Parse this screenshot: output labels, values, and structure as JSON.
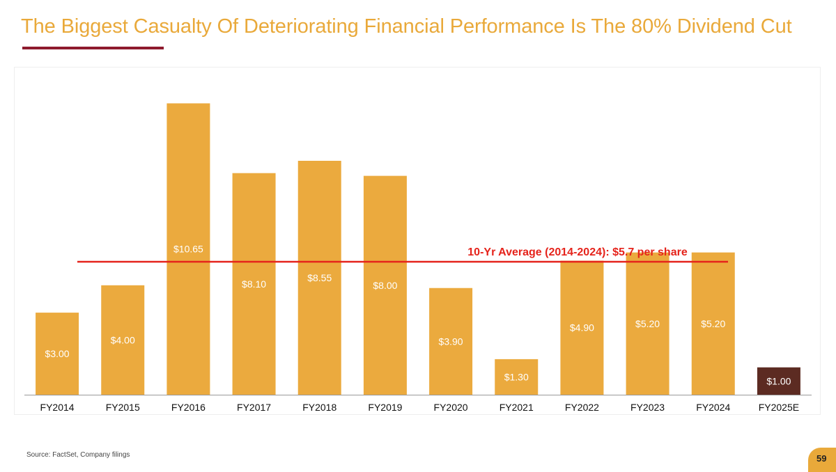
{
  "slide": {
    "title": "The Biggest Casualty Of Deteriorating Financial Performance Is The 80% Dividend Cut",
    "source": "Source: FactSet, Company filings",
    "page_number": "59"
  },
  "colors": {
    "title": "#E9A93A",
    "accent_rule": "#8E1B2E",
    "bar": "#EBAA3E",
    "bar_estimate": "#5C2B22",
    "average_line": "#E5231B",
    "axis": "#999999",
    "label_inside": "#ffffff",
    "tick_label": "#111111"
  },
  "chart_data": {
    "type": "bar",
    "title": "",
    "xlabel": "",
    "ylabel": "",
    "categories": [
      "FY2014",
      "FY2015",
      "FY2016",
      "FY2017",
      "FY2018",
      "FY2019",
      "FY2020",
      "FY2021",
      "FY2022",
      "FY2023",
      "FY2024",
      "FY2025E"
    ],
    "values": [
      3.0,
      4.0,
      10.65,
      8.1,
      8.55,
      8.0,
      3.9,
      1.3,
      4.9,
      5.2,
      5.2,
      1.0
    ],
    "labels": [
      "$3.00",
      "$4.00",
      "$10.65",
      "$8.10",
      "$8.55",
      "$8.00",
      "$3.90",
      "$1.30",
      "$4.90",
      "$5.20",
      "$5.20",
      "$1.00"
    ],
    "estimate_index": 11,
    "ylim": [
      0,
      11.0
    ],
    "grid": false,
    "reference_line": {
      "value": 5.7,
      "label": "10-Yr Average (2014-2024): $5.7 per share"
    }
  }
}
